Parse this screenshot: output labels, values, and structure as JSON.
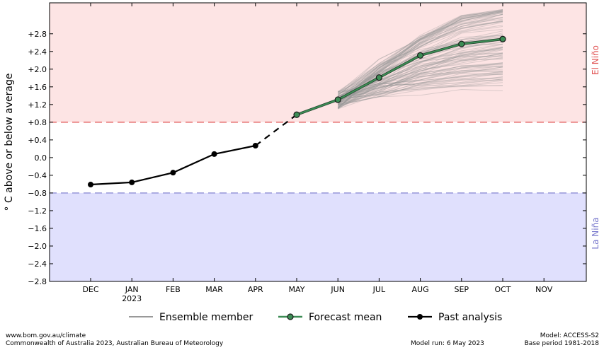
{
  "chart_data": {
    "type": "line",
    "ylabel": "° C above or below average",
    "ylim": [
      -2.8,
      3.5
    ],
    "yticks": [
      -2.8,
      -2.4,
      -2.0,
      -1.6,
      -1.2,
      -0.8,
      -0.4,
      0.0,
      0.4,
      0.8,
      1.2,
      1.6,
      2.0,
      2.4,
      2.8
    ],
    "ytick_labels": [
      "−2.8",
      "−2.4",
      "−2.0",
      "−1.6",
      "−1.2",
      "−0.8",
      "−0.4",
      "0.0",
      "+0.4",
      "+0.8",
      "+1.2",
      "+1.6",
      "+2.0",
      "+2.4",
      "+2.8"
    ],
    "categories": [
      "DEC",
      "JAN",
      "FEB",
      "MAR",
      "APR",
      "MAY",
      "JUN",
      "JUL",
      "AUG",
      "SEP",
      "OCT",
      "NOV"
    ],
    "year_label": "2023",
    "thresholds": {
      "el_nino": {
        "value": 0.8,
        "label": "El Niño",
        "color": "#e05050",
        "fill": "#fde4e4"
      },
      "la_nina": {
        "value": -0.8,
        "label": "La Niña",
        "color": "#7777cc",
        "fill": "#e0e0fd"
      }
    },
    "series": [
      {
        "name": "Past analysis",
        "x": [
          "DEC",
          "JAN",
          "FEB",
          "MAR",
          "APR"
        ],
        "values": [
          -0.61,
          -0.56,
          -0.34,
          0.08,
          0.27
        ],
        "color": "#000000"
      },
      {
        "name": "Forecast mean",
        "x": [
          "MAY",
          "JUN",
          "JUL",
          "AUG",
          "SEP",
          "OCT"
        ],
        "values": [
          0.97,
          1.31,
          1.81,
          2.31,
          2.57,
          2.68
        ],
        "color": "#3d8c55"
      }
    ],
    "ensemble": {
      "name": "Ensemble member",
      "color": "#999999",
      "x": [
        "JUN",
        "JUL",
        "AUG",
        "SEP",
        "OCT"
      ],
      "start_month": "JUN",
      "end_month": "OCT",
      "start_range": [
        1.1,
        1.5
      ],
      "oct_range": [
        1.5,
        3.35
      ],
      "members": 99
    },
    "bridge": {
      "from": "APR",
      "to": "MAY",
      "style": "dashed"
    },
    "legend": [
      "Ensemble member",
      "Forecast mean",
      "Past analysis"
    ],
    "grid": false
  },
  "footer": {
    "url": "www.bom.gov.au/climate",
    "copyright": "Commonwealth of Australia 2023, Australian Bureau of Meteorology",
    "model_run": "Model run: 6 May 2023",
    "model": "Model: ACCESS-S2",
    "base_period": "Base period 1981-2018"
  }
}
